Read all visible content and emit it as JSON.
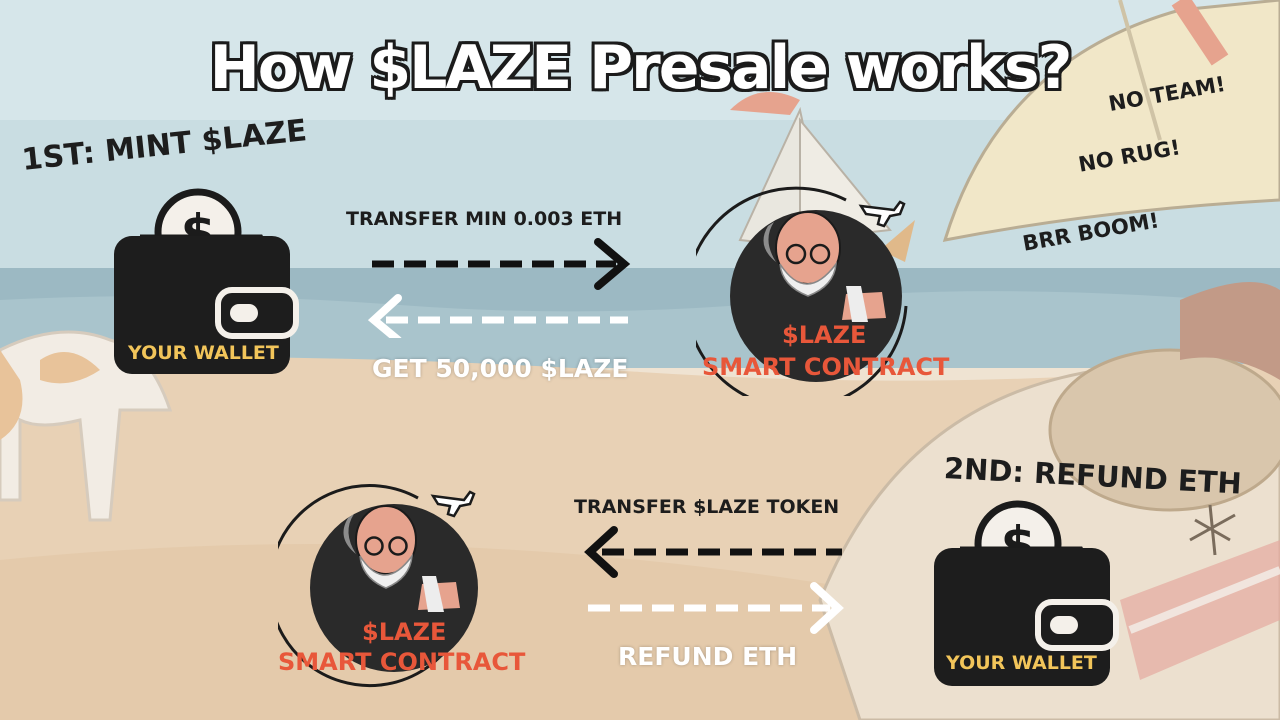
{
  "title": "How $LAZE Presale works?",
  "step1": {
    "heading": "1ST: MINT $LAZE",
    "wallet_label": "YOUR WALLET",
    "transfer_label": "TRANSFER MIN 0.003 ETH",
    "receive_label": "GET 50,000 $LAZE",
    "contract_line1": "$LAZE",
    "contract_line2": "SMART CONTRACT"
  },
  "step2": {
    "heading": "2ND: REFUND ETH",
    "wallet_label": "YOUR WALLET",
    "transfer_label": "TRANSFER $LAZE TOKEN",
    "receive_label": "REFUND ETH",
    "contract_line1": "$LAZE",
    "contract_line2": "SMART CONTRACT"
  },
  "notes": [
    "NO TEAM!",
    "NO RUG!",
    "BRR BOOM!"
  ],
  "colors": {
    "outline": "#1b1b1b",
    "wallet_text": "#f2c55a",
    "contract_text": "#e8573a",
    "arrow_dark": "#111111",
    "arrow_light": "#ffffff"
  },
  "icons": [
    "wallet-icon",
    "dollar-coin-icon",
    "airplane-icon",
    "character-avatar-icon",
    "arrow-right-icon",
    "arrow-left-icon"
  ]
}
